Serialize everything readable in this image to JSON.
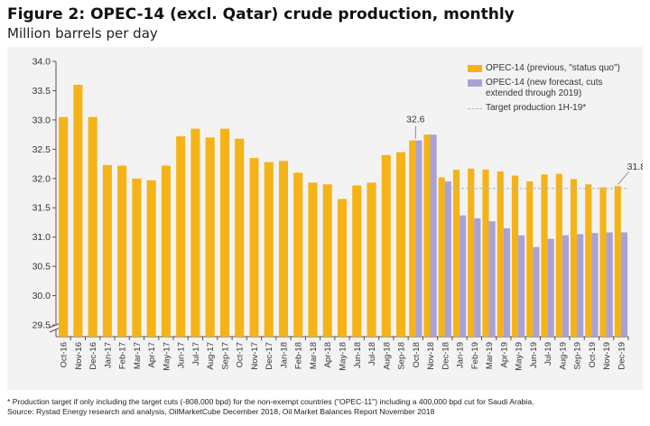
{
  "title": "Figure 2: OPEC-14 (excl. Qatar) crude production, monthly",
  "subtitle": "Million barrels per day",
  "colors": {
    "previous": "#f5b317",
    "new_forecast": "#a9a2d6",
    "target": "#b9b9b9",
    "background": "#f3f3f3"
  },
  "legend": {
    "previous": "OPEC-14 (previous, \"status quo\")",
    "new_forecast": "OPEC-14 (new forecast, cuts extended through 2019)",
    "target": "Target production 1H-19*"
  },
  "annotations": {
    "peak": "32.6",
    "end": "31.8"
  },
  "footnote": {
    "line1": "* Production target if only including the target cuts (-808,000 bpd) for the non-exempt countries (\"OPEC-11\") including a 400,000 bpd cut for Saudi Arabia.",
    "line2": "Source: Rystad Energy research and analysis, OilMarketCube December 2018, Oil Market Balances Report November 2018"
  },
  "chart_data": {
    "type": "bar",
    "categories": [
      "Oct-16",
      "Nov-16",
      "Dec-16",
      "Jan-17",
      "Feb-17",
      "Mar-17",
      "Apr-17",
      "May-17",
      "Jun-17",
      "Jul-17",
      "Aug-17",
      "Sep-17",
      "Oct-17",
      "Nov-17",
      "Dec-17",
      "Jan-18",
      "Feb-18",
      "Mar-18",
      "Apr-18",
      "May-18",
      "Jun-18",
      "Jul-18",
      "Aug-18",
      "Sep-18",
      "Oct-18",
      "Nov-18",
      "Dec-18",
      "Jan-19",
      "Feb-19",
      "Mar-19",
      "Apr-19",
      "May-19",
      "Jun-19",
      "Jul-19",
      "Aug-19",
      "Sep-19",
      "Oct-19",
      "Nov-19",
      "Dec-19"
    ],
    "series": [
      {
        "name": "OPEC-14 (previous, \"status quo\")",
        "values": [
          33.05,
          33.6,
          33.05,
          32.23,
          32.22,
          32.0,
          31.97,
          32.22,
          32.72,
          32.85,
          32.7,
          32.85,
          32.68,
          32.35,
          32.28,
          32.3,
          32.1,
          31.93,
          31.9,
          31.65,
          31.88,
          31.93,
          32.4,
          32.45,
          32.65,
          32.75,
          32.02,
          32.15,
          32.17,
          32.15,
          32.12,
          32.05,
          31.95,
          32.07,
          32.08,
          31.99,
          31.9,
          31.85,
          31.87
        ]
      },
      {
        "name": "OPEC-14 (new forecast, cuts extended through 2019)",
        "values": [
          null,
          null,
          null,
          null,
          null,
          null,
          null,
          null,
          null,
          null,
          null,
          null,
          null,
          null,
          null,
          null,
          null,
          null,
          null,
          null,
          null,
          null,
          null,
          null,
          32.65,
          32.75,
          31.95,
          31.37,
          31.32,
          31.27,
          31.15,
          31.03,
          30.83,
          30.97,
          31.03,
          31.05,
          31.07,
          31.08,
          31.08
        ]
      }
    ],
    "target_line": {
      "label": "Target production 1H-19*",
      "value": 31.83,
      "from": "Jan-19",
      "to": "Dec-19"
    },
    "ylim": [
      29.3,
      34.0
    ],
    "yticks": [
      "29.5",
      "30.0",
      "30.5",
      "31.0",
      "31.5",
      "32.0",
      "32.5",
      "33.0",
      "33.5",
      "34.0"
    ],
    "axis_break": true,
    "grid": false,
    "legend_position": "top-right"
  }
}
